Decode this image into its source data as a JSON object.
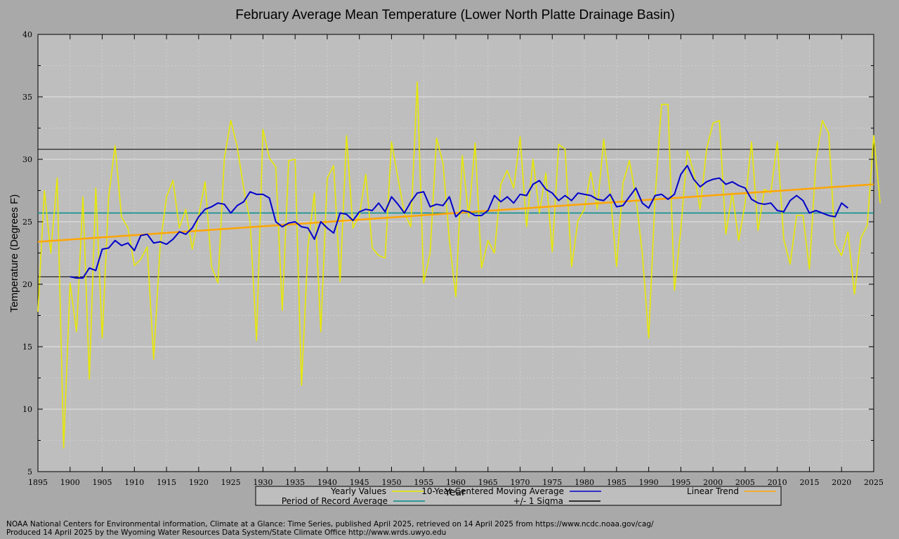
{
  "chart_data": {
    "type": "line",
    "title": "February Average Mean Temperature (Lower North Platte Drainage Basin)",
    "xlabel": "Year",
    "ylabel": "Temperature (Degrees F)",
    "xlim": [
      1895,
      2025
    ],
    "ylim": [
      5,
      40
    ],
    "xticks": [
      1895,
      1900,
      1905,
      1910,
      1915,
      1920,
      1925,
      1930,
      1935,
      1940,
      1945,
      1950,
      1955,
      1960,
      1965,
      1970,
      1975,
      1980,
      1985,
      1990,
      1995,
      2000,
      2005,
      2010,
      2015,
      2020,
      2025
    ],
    "yticks": [
      5,
      10,
      15,
      20,
      25,
      30,
      35,
      40
    ],
    "grid": true,
    "legend_position": "bottom",
    "years_start": 1895,
    "series": [
      {
        "name": "Yearly Values",
        "color": "#e8e800",
        "values": [
          17.8,
          27.5,
          22.5,
          28.5,
          6.9,
          20.1,
          16.2,
          27.0,
          12.4,
          27.7,
          15.7,
          27.0,
          31.1,
          25.4,
          24.5,
          21.5,
          22.0,
          23.0,
          14.0,
          23.0,
          27.0,
          28.3,
          24.5,
          26.0,
          22.8,
          25.5,
          28.2,
          21.4,
          20.1,
          30.1,
          33.1,
          31.0,
          27.7,
          25.0,
          15.5,
          32.4,
          30.1,
          29.4,
          17.9,
          29.9,
          30.0,
          11.9,
          23.0,
          27.3,
          16.2,
          28.5,
          29.5,
          20.2,
          31.9,
          24.5,
          25.5,
          28.8,
          22.9,
          22.3,
          22.1,
          31.4,
          28.5,
          25.7,
          24.6,
          36.2,
          20.1,
          22.5,
          31.7,
          29.7,
          23.5,
          19.0,
          30.3,
          25.4,
          31.3,
          21.3,
          23.5,
          22.5,
          28.0,
          29.1,
          27.7,
          31.8,
          24.6,
          30.0,
          25.7,
          28.9,
          22.6,
          31.2,
          30.8,
          21.4,
          25.1,
          26.0,
          29.0,
          26.0,
          31.6,
          27.4,
          21.4,
          28.1,
          29.9,
          27.0,
          22.5,
          15.7,
          27.0,
          34.4,
          34.4,
          19.5,
          24.4,
          30.7,
          29.0,
          26.0,
          30.8,
          32.9,
          33.1,
          24.0,
          27.3,
          23.5,
          26.5,
          31.4,
          24.3,
          27.6,
          27.3,
          31.4,
          23.6,
          21.6,
          25.5,
          25.5,
          21.2,
          29.8,
          33.1,
          32.1,
          23.2,
          22.3,
          24.2,
          19.2,
          23.7,
          24.7,
          31.9,
          26.5
        ]
      },
      {
        "name": "10-Year Centered Moving Average",
        "color": "#0000cc",
        "start_year": 1900,
        "values": [
          20.6,
          20.5,
          20.5,
          21.3,
          21.1,
          22.8,
          22.9,
          23.5,
          23.1,
          23.3,
          22.7,
          23.9,
          24.0,
          23.3,
          23.4,
          23.2,
          23.6,
          24.2,
          24.0,
          24.5,
          25.4,
          26.0,
          26.2,
          26.5,
          26.4,
          25.7,
          26.3,
          26.6,
          27.4,
          27.2,
          27.2,
          26.9,
          25.0,
          24.6,
          24.9,
          25.0,
          24.6,
          24.5,
          23.6,
          25.0,
          24.5,
          24.1,
          25.7,
          25.6,
          25.1,
          25.8,
          26.0,
          25.9,
          26.5,
          25.8,
          27.0,
          26.4,
          25.7,
          26.6,
          27.3,
          27.4,
          26.2,
          26.4,
          26.3,
          27.0,
          25.4,
          25.9,
          25.8,
          25.5,
          25.5,
          25.9,
          27.1,
          26.6,
          27.0,
          26.5,
          27.2,
          27.1,
          28.0,
          28.3,
          27.6,
          27.3,
          26.7,
          27.1,
          26.7,
          27.3,
          27.2,
          27.1,
          26.8,
          26.7,
          27.2,
          26.2,
          26.3,
          27.0,
          27.7,
          26.5,
          26.1,
          27.1,
          27.2,
          26.8,
          27.2,
          28.8,
          29.5,
          28.4,
          27.8,
          28.2,
          28.4,
          28.5,
          28.0,
          28.2,
          27.9,
          27.7,
          26.8,
          26.5,
          26.4,
          26.5,
          25.9,
          25.8,
          26.7,
          27.1,
          26.7,
          25.7,
          25.9,
          25.7,
          25.5,
          25.4,
          26.5,
          26.1
        ]
      },
      {
        "name": "Linear Trend",
        "color": "#ffa500",
        "x": [
          1895,
          2025
        ],
        "values": [
          23.4,
          28.0
        ]
      },
      {
        "name": "Period of Record Average",
        "color": "#008b8b",
        "values": [
          25.7
        ]
      },
      {
        "name": "+/- 1 Sigma",
        "color": "#000000",
        "values": [
          20.6,
          30.8
        ]
      }
    ],
    "legend": [
      {
        "label": "Yearly Values",
        "color": "#e8e800"
      },
      {
        "label": "10-Year Centered Moving Average",
        "color": "#0000cc"
      },
      {
        "label": "Linear Trend",
        "color": "#ffa500"
      },
      {
        "label": "Period of Record Average",
        "color": "#008b8b"
      },
      {
        "label": "+/- 1 Sigma",
        "color": "#000000"
      }
    ]
  },
  "footer": {
    "line1": "NOAA National Centers for Environmental information, Climate at a Glance: Time Series, published April 2025, retrieved on 14 April 2025 from https://www.ncdc.noaa.gov/cag/",
    "line2": "Produced 14 April 2025 by the Wyoming Water Resources Data System/State Climate Office http://www.wrds.uwyo.edu"
  }
}
